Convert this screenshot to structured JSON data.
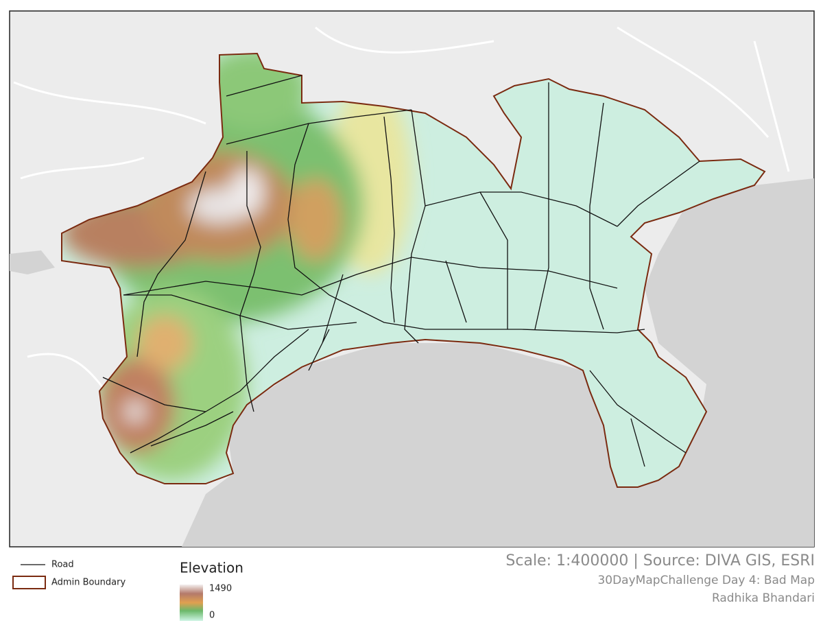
{
  "legend": {
    "road": "Road",
    "admin_boundary": "Admin Boundary",
    "elevation": {
      "title": "Elevation",
      "max": 1490,
      "min": 0
    }
  },
  "footer": {
    "scale_source": "Scale: 1:400000 | Source: DIVA GIS, ESRI",
    "challenge": "30DayMapChallenge Day 4: Bad Map",
    "author": "Radhika Bhandari"
  }
}
